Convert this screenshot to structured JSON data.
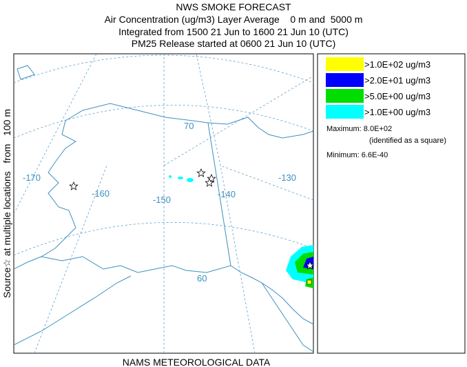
{
  "header": {
    "lines": [
      "NWS SMOKE FORECAST",
      "Air Concentration (ug/m3) Layer Average    0 m and  5000 m",
      "Integrated from 1500 21 Jun to 1600 21 Jun 10 (UTC)",
      "PM25 Release started at 0600 21 Jun 10 (UTC)"
    ]
  },
  "side_label": "Source☆ at multiple locations   from   100 m",
  "footer": "NAMS METEOROLOGICAL DATA",
  "map": {
    "labels": [
      "-170",
      "-160",
      "-150",
      "-140",
      "-130",
      "70",
      "60"
    ]
  },
  "legend": {
    "items": [
      {
        "label": ">1.0E+02 ug/m3",
        "color": "#ffff00"
      },
      {
        "label": ">2.0E+01 ug/m3",
        "color": "#0000ff"
      },
      {
        "label": ">5.0E+00 ug/m3",
        "color": "#00dd00"
      },
      {
        "label": ">1.0E+00 ug/m3",
        "color": "#00ffff"
      }
    ],
    "maximum": "Maximum: 8.0E+02",
    "max_note": "(identified as a square)",
    "minimum": "Minimum: 6.6E-40"
  }
}
